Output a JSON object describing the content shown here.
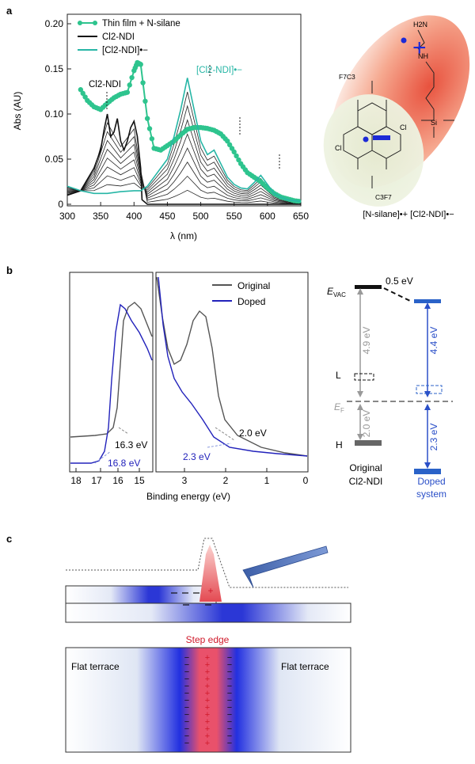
{
  "panels": {
    "a": "a",
    "b": "b",
    "c": "c"
  },
  "panel_a": {
    "chart_data": {
      "type": "line",
      "xlabel": "λ (nm)",
      "ylabel": "Abs (AU)",
      "xlim": [
        300,
        650
      ],
      "ylim": [
        0,
        0.2
      ],
      "xticks": [
        "300",
        "350",
        "400",
        "450",
        "500",
        "550",
        "600",
        "650"
      ],
      "yticks": [
        "0",
        "0.05",
        "0.10",
        "0.15",
        "0.20"
      ],
      "legend": [
        "Thin film + N-silane",
        "Cl2-NDI",
        "[Cl2-NDI]•−"
      ],
      "series": [
        {
          "name": "Thin film + N-silane",
          "color": "#2ec48e",
          "x": [
            320,
            330,
            340,
            350,
            360,
            370,
            380,
            390,
            400,
            405,
            410,
            420,
            430,
            440,
            450,
            460,
            470,
            480,
            490,
            500,
            510,
            520,
            530,
            540,
            550,
            560,
            570,
            580,
            590,
            600,
            610,
            620,
            630,
            640,
            650
          ],
          "y": [
            0.127,
            0.115,
            0.108,
            0.105,
            0.112,
            0.118,
            0.122,
            0.124,
            0.148,
            0.157,
            0.155,
            0.095,
            0.062,
            0.06,
            0.065,
            0.07,
            0.077,
            0.083,
            0.085,
            0.085,
            0.084,
            0.082,
            0.078,
            0.07,
            0.058,
            0.045,
            0.035,
            0.03,
            0.025,
            0.018,
            0.012,
            0.008,
            0.006,
            0.004,
            0.003
          ]
        },
        {
          "name": "Cl2-NDI",
          "color": "#111111",
          "x": [
            300,
            320,
            340,
            350,
            355,
            360,
            365,
            370,
            375,
            380,
            385,
            390,
            395,
            400,
            405,
            410,
            412,
            420,
            450,
            500,
            550,
            600,
            650
          ],
          "y": [
            0.01,
            0.015,
            0.04,
            0.06,
            0.082,
            0.1,
            0.075,
            0.08,
            0.095,
            0.07,
            0.06,
            0.07,
            0.085,
            0.092,
            0.075,
            0.04,
            0.005,
            0.0,
            0.0,
            0.0,
            0.0,
            0.0,
            0.0
          ]
        },
        {
          "name": "[Cl2-NDI]•−",
          "color": "#27b6a6",
          "x": [
            300,
            320,
            340,
            360,
            380,
            400,
            410,
            420,
            430,
            440,
            450,
            460,
            470,
            480,
            490,
            500,
            510,
            520,
            530,
            540,
            550,
            560,
            570,
            580,
            590,
            600,
            610,
            620,
            630,
            640,
            650
          ],
          "y": [
            0.02,
            0.015,
            0.012,
            0.012,
            0.014,
            0.015,
            0.015,
            0.02,
            0.03,
            0.04,
            0.05,
            0.075,
            0.105,
            0.14,
            0.105,
            0.07,
            0.055,
            0.06,
            0.045,
            0.03,
            0.022,
            0.018,
            0.017,
            0.024,
            0.032,
            0.022,
            0.012,
            0.008,
            0.005,
            0.004,
            0.003
          ]
        }
      ],
      "annotations": [
        "Cl2-NDI",
        "[Cl2-NDI]•−"
      ]
    },
    "scheme_caption": "[N-silane]•+ [Cl2-NDI]•−",
    "atoms": {
      "h2n": "H2N",
      "nh": "NH",
      "si": "Si",
      "f7c3_top": "F7C3",
      "c3f7_bot": "C3F7",
      "cl_right": "Cl",
      "cl_left": "Cl",
      "plus": "+"
    }
  },
  "panel_b": {
    "chart_data": {
      "type": "line",
      "xlabel": "Binding energy (eV)",
      "xticks": [
        "18",
        "17",
        "16",
        "15",
        "3",
        "2",
        "1",
        "0"
      ],
      "legend": [
        "Original",
        "Doped"
      ],
      "series": [
        {
          "name": "Original",
          "color": "#555555"
        },
        {
          "name": "Doped",
          "color": "#2222bb"
        }
      ],
      "annotations": [
        "16.3 eV",
        "16.8 eV",
        "2.0 eV",
        "2.3 eV"
      ]
    },
    "energy_diagram": {
      "evac": "E",
      "evac_sub": "VAC",
      "shift": "0.5 eV",
      "orig_gap": "4.9 eV",
      "doped_gap": "4.4 eV",
      "orig_low": "2.0 eV",
      "doped_low": "2.3 eV",
      "L": "L",
      "EF": "E",
      "EF_sub": "F",
      "H": "H",
      "orig_label_1": "Original",
      "orig_label_2": "Cl2-NDI",
      "doped_label_1": "Doped",
      "doped_label_2": "system"
    }
  },
  "panel_c": {
    "step_edge": "Step edge",
    "flat_left": "Flat terrace",
    "flat_right": "Flat terrace"
  }
}
